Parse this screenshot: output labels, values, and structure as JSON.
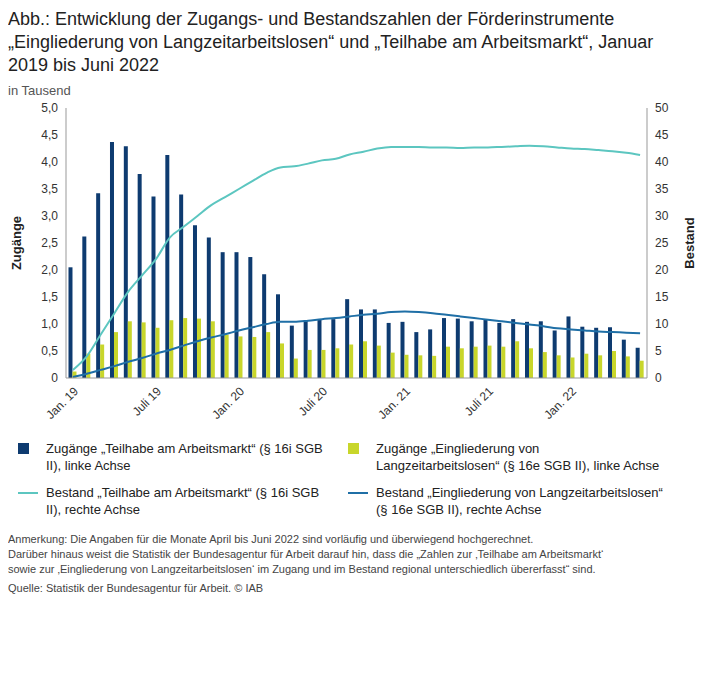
{
  "chart_data": {
    "type": "bar",
    "title": "Abb.: Entwicklung der Zugangs- und Bestandszahlen der Förderinstrumente „Eingliederung von Langzeitarbeitslosen“ und „Teilhabe am Arbeitsmarkt“, Januar 2019 bis Juni 2022",
    "subtitle": "in Tausend",
    "y_label": "Zugänge",
    "y2_label": "Bestand",
    "categories": [
      "Jan. 19",
      null,
      null,
      null,
      null,
      null,
      "Juli 19",
      null,
      null,
      null,
      null,
      null,
      "Jan. 20",
      null,
      null,
      null,
      null,
      null,
      "Juli 20",
      null,
      null,
      null,
      null,
      null,
      "Jan. 21",
      null,
      null,
      null,
      null,
      null,
      "Juli 21",
      null,
      null,
      null,
      null,
      null,
      "Jan. 22",
      null,
      null,
      null,
      null,
      null
    ],
    "series": [
      {
        "name": "Zugänge „Teilhabe am Arbeitsmarkt“ (§ 16i SGB II), linke Achse",
        "type": "bar",
        "color": "#0e3b70",
        "values": [
          2.05,
          2.62,
          3.42,
          4.37,
          4.29,
          3.78,
          3.36,
          4.13,
          3.4,
          2.83,
          2.6,
          2.33,
          2.33,
          2.24,
          1.92,
          1.55,
          0.97,
          1.07,
          1.08,
          1.09,
          1.46,
          1.27,
          1.27,
          1.02,
          1.04,
          0.85,
          0.9,
          1.11,
          1.1,
          1.05,
          1.08,
          1.02,
          1.09,
          1.04,
          1.05,
          0.88,
          1.14,
          0.95,
          0.93,
          0.94,
          0.71,
          0.56
        ]
      },
      {
        "name": "Zugänge „Eingliederung von Langzeitarbeitslosen“ (§ 16e SGB II), linke Achse",
        "type": "bar",
        "color": "#c8d62b",
        "values": [
          0.12,
          0.45,
          0.62,
          0.85,
          1.05,
          1.03,
          0.93,
          1.07,
          1.11,
          1.1,
          1.05,
          0.8,
          0.77,
          0.76,
          0.85,
          0.64,
          0.36,
          0.52,
          0.52,
          0.55,
          0.62,
          0.68,
          0.6,
          0.47,
          0.43,
          0.42,
          0.41,
          0.58,
          0.55,
          0.58,
          0.6,
          0.58,
          0.68,
          0.55,
          0.48,
          0.42,
          0.38,
          0.45,
          0.42,
          0.5,
          0.4,
          0.32
        ]
      },
      {
        "name": "Bestand „Teilhabe am Arbeitsmarkt“ (§ 16i SGB II), rechte Achse",
        "type": "line",
        "axis": "y2",
        "color": "#5cc6c0",
        "values": [
          1.5,
          4,
          8,
          12,
          16,
          19,
          22,
          26,
          28,
          30,
          32,
          33.5,
          35,
          36.5,
          38,
          39,
          39.2,
          39.7,
          40.3,
          40.6,
          41.4,
          41.9,
          42.5,
          42.8,
          42.8,
          42.8,
          42.7,
          42.7,
          42.6,
          42.7,
          42.7,
          42.8,
          42.9,
          43.0,
          42.9,
          42.7,
          42.5,
          42.4,
          42.2,
          42.0,
          41.7,
          41.3
        ]
      },
      {
        "name": "Bestand „Eingliederung von Langzeitarbeitslosen“ (§ 16e SGB II), rechte Achse",
        "type": "line",
        "axis": "y2",
        "color": "#1f6fa6",
        "values": [
          0.2,
          0.8,
          1.5,
          2.2,
          3,
          3.7,
          4.5,
          5.2,
          6,
          6.8,
          7.5,
          8.1,
          8.8,
          9.4,
          10,
          10.4,
          10.4,
          10.6,
          10.9,
          11.1,
          11.4,
          11.7,
          11.9,
          12.2,
          12.3,
          12.2,
          12.0,
          11.7,
          11.4,
          11.1,
          10.8,
          10.5,
          10.2,
          9.9,
          9.6,
          9.2,
          9.0,
          8.8,
          8.6,
          8.5,
          8.4,
          8.3
        ]
      }
    ],
    "ylim": [
      0,
      5
    ],
    "yticks": [
      0,
      {
        "value": 0.5,
        "label": "0,5"
      },
      {
        "value": 1,
        "label": "1,0"
      },
      {
        "value": 1.5,
        "label": "1,5"
      },
      {
        "value": 2,
        "label": "2,0"
      },
      {
        "value": 2.5,
        "label": "2,5"
      },
      {
        "value": 3,
        "label": "3,0"
      },
      {
        "value": 3.5,
        "label": "3,5"
      },
      {
        "value": 4,
        "label": "4,0"
      },
      {
        "value": 4.5,
        "label": "4,5"
      },
      {
        "value": 5,
        "label": "5,0"
      }
    ],
    "y2lim": [
      0,
      50
    ],
    "y2ticks": [
      0,
      5,
      10,
      15,
      20,
      25,
      30,
      35,
      40,
      45,
      50
    ],
    "grid": false,
    "notes": [
      "Anmerkung: Die Angaben für die Monate April bis Juni 2022 sind vorläufig und überwiegend hochgerechnet.",
      "Darüber hinaus weist die Statistik der Bundesagentur für Arbeit darauf hin, dass die „Zahlen zur ‚Teilhabe am Arbeitsmarkt‘",
      "sowie zur ‚Eingliederung von Langzeitarbeitslosen‘ im Zugang und im Bestand regional unterschiedlich übererfasst“ sind.",
      "Quelle: Statistik der Bundesagentur für Arbeit. © IAB"
    ]
  }
}
